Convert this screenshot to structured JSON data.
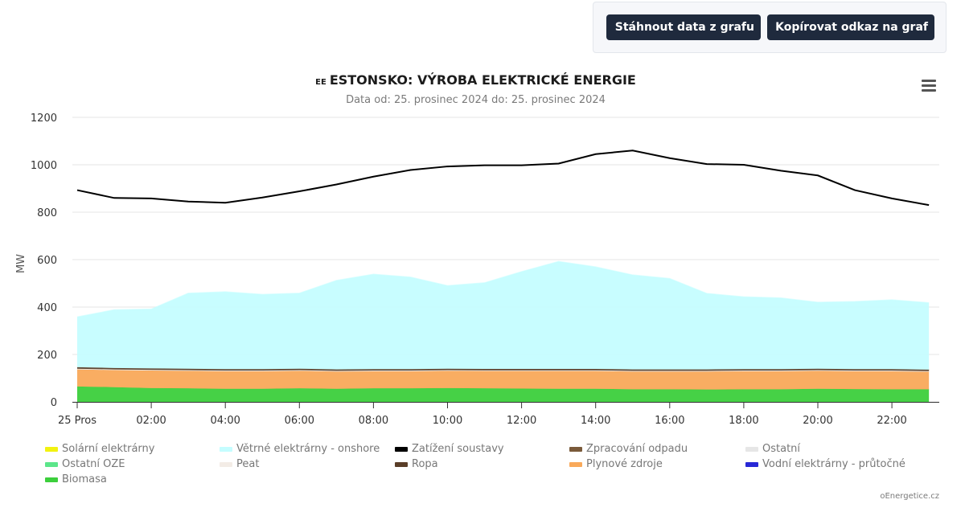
{
  "toolbar": {
    "download_label": "Stáhnout data z grafu",
    "copy_link_label": "Kopírovat odkaz na graf"
  },
  "header": {
    "flag_label": "EE",
    "title": "ESTONSKO: VÝROBA ELEKTRICKÉ ENERGIE",
    "subtitle": "Data od: 25. prosinec 2024 do: 25. prosinec 2024",
    "menu_icon": "hamburger-menu-icon"
  },
  "credit": "oEnergetice.cz",
  "legend": [
    {
      "label": "Solární elektrárny",
      "color": "#f2f210"
    },
    {
      "label": "Větrné elektrárny - onshore",
      "color": "#c5fdff"
    },
    {
      "label": "Zatížení soustavy",
      "color": "#000000"
    },
    {
      "label": "Zpracování odpadu",
      "color": "#7a5a3a"
    },
    {
      "label": "Ostatní",
      "color": "#e6e6e6"
    },
    {
      "label": "Ostatní OZE",
      "color": "#5ce68a"
    },
    {
      "label": "Peat",
      "color": "#f3ece6"
    },
    {
      "label": "Ropa",
      "color": "#5a3e28"
    },
    {
      "label": "Plynové zdroje",
      "color": "#f9a95a"
    },
    {
      "label": "Vodní elektrárny - průtočné",
      "color": "#2828d6"
    },
    {
      "label": "Biomasa",
      "color": "#3ccf3c"
    }
  ],
  "chart_data": {
    "type": "area",
    "ylabel": "MW",
    "ylim": [
      0,
      1200
    ],
    "y_ticks": [
      "0",
      "200",
      "400",
      "600",
      "800",
      "1000",
      "1200"
    ],
    "x_tick_labels": [
      "25 Pros",
      "02:00",
      "04:00",
      "06:00",
      "08:00",
      "10:00",
      "12:00",
      "14:00",
      "16:00",
      "18:00",
      "20:00",
      "22:00"
    ],
    "x": [
      "00:00",
      "01:00",
      "02:00",
      "03:00",
      "04:00",
      "05:00",
      "06:00",
      "07:00",
      "08:00",
      "09:00",
      "10:00",
      "11:00",
      "12:00",
      "13:00",
      "14:00",
      "15:00",
      "16:00",
      "17:00",
      "18:00",
      "19:00",
      "20:00",
      "21:00",
      "22:00",
      "23:00"
    ],
    "grid": true,
    "legend_position": "bottom",
    "stacked_series": [
      {
        "name": "Biomasa",
        "color": "#3ccf3c",
        "values": [
          65,
          62,
          58,
          57,
          55,
          55,
          57,
          55,
          57,
          57,
          58,
          57,
          56,
          55,
          55,
          53,
          53,
          52,
          53,
          53,
          55,
          54,
          53,
          53
        ]
      },
      {
        "name": "Plynové zdroje",
        "color": "#f9a95a",
        "values": [
          72,
          72,
          74,
          74,
          74,
          74,
          74,
          73,
          72,
          72,
          73,
          73,
          74,
          75,
          75,
          75,
          75,
          76,
          76,
          76,
          76,
          75,
          76,
          74
        ]
      },
      {
        "name": "Ostatní",
        "color": "#e6e6e6",
        "values": [
          3,
          3,
          3,
          3,
          3,
          3,
          3,
          3,
          3,
          3,
          3,
          3,
          3,
          3,
          3,
          3,
          3,
          3,
          3,
          3,
          3,
          3,
          3,
          3
        ]
      },
      {
        "name": "Ropa",
        "color": "#5a3e28",
        "values": [
          6,
          6,
          6,
          6,
          6,
          6,
          6,
          6,
          6,
          6,
          6,
          6,
          6,
          6,
          6,
          6,
          6,
          6,
          6,
          6,
          6,
          6,
          6,
          6
        ]
      },
      {
        "name": "Větrné elektrárny - onshore",
        "color": "#c5fdff",
        "values": [
          212,
          245,
          250,
          318,
          326,
          315,
          318,
          375,
          400,
          388,
          350,
          363,
          410,
          453,
          430,
          398,
          383,
          320,
          305,
          300,
          280,
          285,
          292,
          282
        ]
      }
    ],
    "line_series": [
      {
        "name": "Zatížení soustavy",
        "color": "#000000",
        "values": [
          893,
          860,
          858,
          845,
          840,
          862,
          888,
          917,
          950,
          978,
          993,
          998,
          998,
          1005,
          1045,
          1060,
          1028,
          1003,
          1000,
          975,
          955,
          893,
          858,
          830
        ]
      }
    ]
  }
}
